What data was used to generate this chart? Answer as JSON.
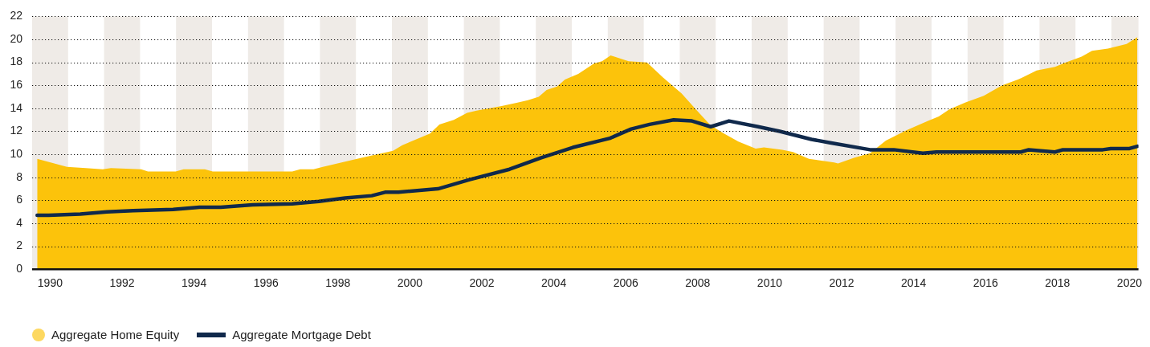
{
  "chart_data": {
    "type": "area",
    "xlim": [
      1989.5,
      2020.25
    ],
    "xticks": [
      1990,
      1992,
      1994,
      1996,
      1998,
      2000,
      2002,
      2004,
      2006,
      2008,
      2010,
      2012,
      2014,
      2016,
      2018,
      2020
    ],
    "ylim": [
      0,
      22
    ],
    "yticks": [
      0,
      2,
      4,
      6,
      8,
      10,
      12,
      14,
      16,
      18,
      20,
      22
    ],
    "grid": "y",
    "legend": "bottom",
    "bands": [
      {
        "axis": "x",
        "from": 1989.5,
        "to": 1990.5,
        "color": "#efebe7"
      },
      {
        "axis": "x",
        "from": 1991.5,
        "to": 1992.5,
        "color": "#efebe7"
      },
      {
        "axis": "x",
        "from": 1993.5,
        "to": 1994.5,
        "color": "#efebe7"
      },
      {
        "axis": "x",
        "from": 1995.5,
        "to": 1996.5,
        "color": "#efebe7"
      },
      {
        "axis": "x",
        "from": 1997.5,
        "to": 1998.5,
        "color": "#efebe7"
      },
      {
        "axis": "x",
        "from": 1999.5,
        "to": 2000.5,
        "color": "#efebe7"
      },
      {
        "axis": "x",
        "from": 2001.5,
        "to": 2002.5,
        "color": "#efebe7"
      },
      {
        "axis": "x",
        "from": 2003.5,
        "to": 2004.5,
        "color": "#efebe7"
      },
      {
        "axis": "x",
        "from": 2005.5,
        "to": 2006.5,
        "color": "#efebe7"
      },
      {
        "axis": "x",
        "from": 2007.5,
        "to": 2008.5,
        "color": "#efebe7"
      },
      {
        "axis": "x",
        "from": 2009.5,
        "to": 2010.5,
        "color": "#efebe7"
      },
      {
        "axis": "x",
        "from": 2011.5,
        "to": 2012.5,
        "color": "#efebe7"
      },
      {
        "axis": "x",
        "from": 2013.5,
        "to": 2014.5,
        "color": "#efebe7"
      },
      {
        "axis": "x",
        "from": 2015.5,
        "to": 2016.5,
        "color": "#efebe7"
      },
      {
        "axis": "x",
        "from": 2017.5,
        "to": 2018.5,
        "color": "#efebe7"
      },
      {
        "axis": "x",
        "from": 2019.5,
        "to": 2020.25,
        "color": "#efebe7"
      }
    ],
    "series": [
      {
        "name": "Aggregate Home Equity",
        "color": "#fcc30b",
        "x": [
          1989.64,
          1990.47,
          1990.99,
          1991.46,
          1991.69,
          1992.53,
          1992.72,
          1993.49,
          1993.71,
          1994.3,
          1994.52,
          1996.73,
          1996.95,
          1997.32,
          1997.58,
          1998.65,
          1999.53,
          1999.79,
          2000.56,
          2000.82,
          2001.22,
          2001.59,
          2001.85,
          2002.55,
          2002.99,
          2003.28,
          2003.58,
          2003.8,
          2004.09,
          2004.31,
          2004.68,
          2005.12,
          2005.34,
          2005.58,
          2006.08,
          2006.59,
          2007.03,
          2007.55,
          2007.92,
          2008.36,
          2008.73,
          2009.13,
          2009.61,
          2009.84,
          2010.35,
          2010.65,
          2011.09,
          2011.79,
          2011.9,
          2012.34,
          2012.79,
          2013.23,
          2013.81,
          2014.4,
          2014.7,
          2014.99,
          2015.43,
          2015.95,
          2016.46,
          2016.9,
          2017.42,
          2017.93,
          2018.23,
          2018.67,
          2018.96,
          2019.4,
          2019.92,
          2020.22
        ],
        "values": [
          9.6,
          8.9,
          8.8,
          8.7,
          8.8,
          8.7,
          8.5,
          8.5,
          8.7,
          8.7,
          8.5,
          8.5,
          8.7,
          8.7,
          8.9,
          9.7,
          10.3,
          10.8,
          11.8,
          12.6,
          13.0,
          13.6,
          13.8,
          14.2,
          14.5,
          14.7,
          15.0,
          15.6,
          15.9,
          16.5,
          17.0,
          17.9,
          18.1,
          18.6,
          18.1,
          18.0,
          16.7,
          15.3,
          14.0,
          12.5,
          11.8,
          11.1,
          10.5,
          10.6,
          10.4,
          10.2,
          9.6,
          9.3,
          9.2,
          9.7,
          10.1,
          11.2,
          12.1,
          12.9,
          13.3,
          13.9,
          14.5,
          15.1,
          16.0,
          16.5,
          17.3,
          17.6,
          18.0,
          18.5,
          19.0,
          19.2,
          19.6,
          20.2
        ]
      },
      {
        "name": "Aggregate Mortgage Debt",
        "type": "line",
        "color": "#10294b",
        "x": [
          1989.64,
          1989.96,
          1990.84,
          1991.58,
          1992.31,
          1993.42,
          1994.15,
          1994.74,
          1995.63,
          1996.73,
          1997.47,
          1998.2,
          1998.94,
          1999.31,
          1999.68,
          2000.78,
          2001.66,
          2002.77,
          2003.65,
          2004.53,
          2005.56,
          2006.15,
          2006.66,
          2007.33,
          2007.84,
          2008.36,
          2008.87,
          2009.68,
          2010.28,
          2011.16,
          2011.68,
          2012.79,
          2013.45,
          2014.26,
          2014.63,
          2016.98,
          2017.2,
          2017.93,
          2018.15,
          2019.26,
          2019.48,
          2020.0,
          2020.22
        ],
        "values": [
          4.7,
          4.7,
          4.8,
          5.0,
          5.1,
          5.2,
          5.4,
          5.4,
          5.6,
          5.7,
          5.9,
          6.2,
          6.4,
          6.7,
          6.7,
          7.0,
          7.8,
          8.7,
          9.7,
          10.6,
          11.4,
          12.2,
          12.6,
          13.0,
          12.9,
          12.4,
          12.9,
          12.4,
          12.0,
          11.3,
          11.0,
          10.4,
          10.4,
          10.1,
          10.2,
          10.2,
          10.4,
          10.2,
          10.4,
          10.4,
          10.5,
          10.5,
          10.7
        ]
      }
    ]
  }
}
